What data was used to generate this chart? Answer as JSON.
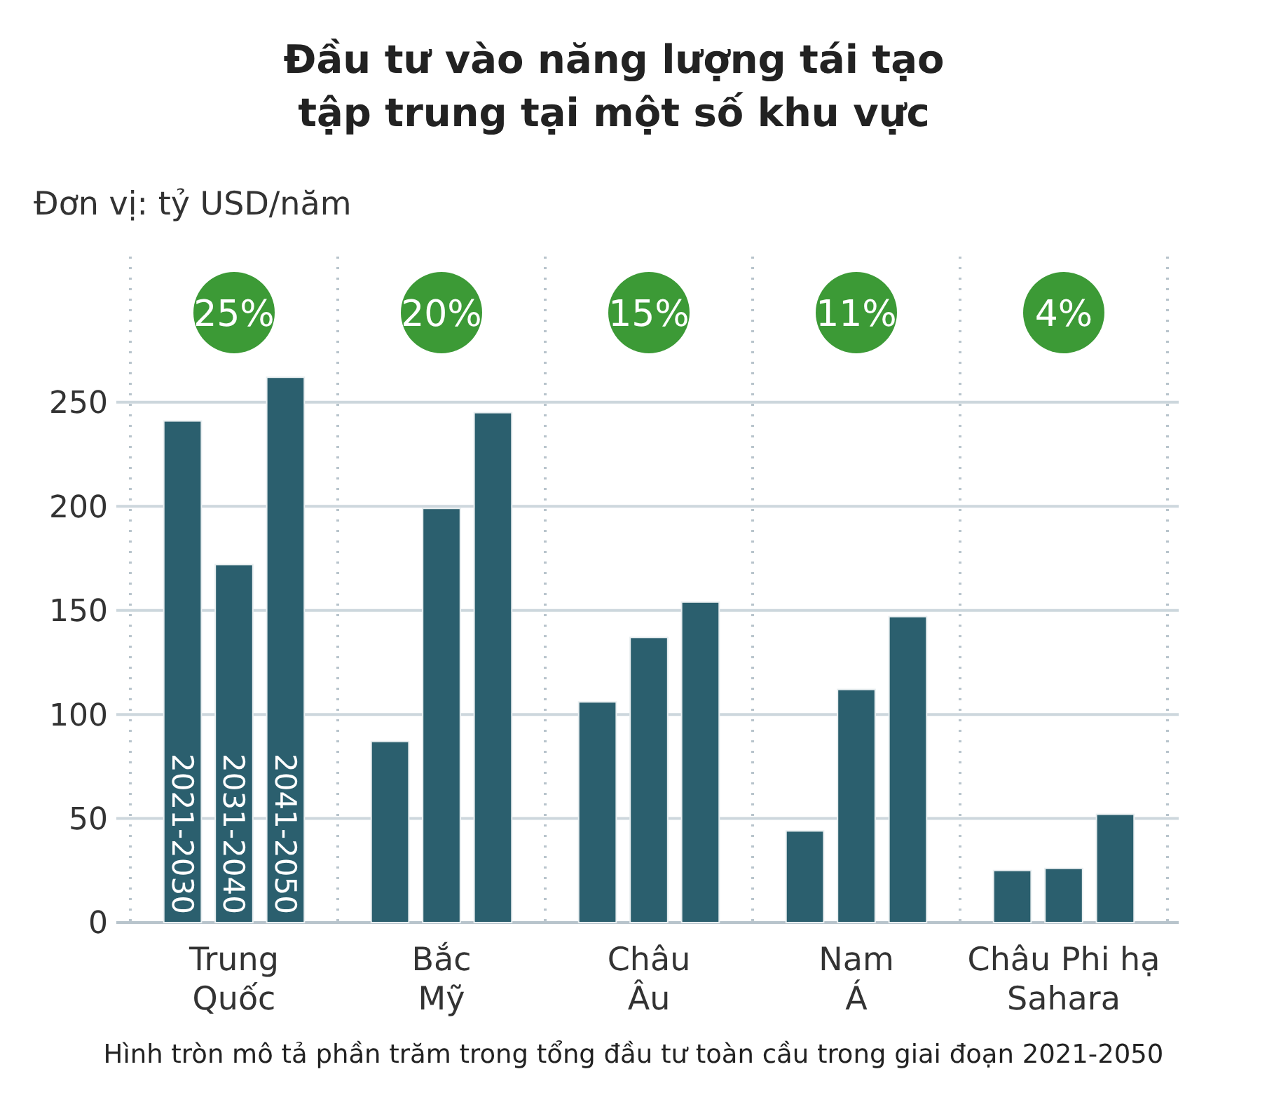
{
  "chart_data": {
    "type": "bar",
    "title": "Đầu tư vào năng lượng tái tạo\ntập trung tại một số khu vực",
    "subtitle": "Đơn vị: tỷ USD/năm",
    "categories": [
      "Trung\nQuốc",
      "Bắc\nMỹ",
      "Châu\nÂu",
      "Nam\nÁ",
      "Châu Phi hạ\nSahara"
    ],
    "series": [
      {
        "name": "2021-2030",
        "color": "#2b5f6e",
        "values": [
          241,
          87,
          106,
          44,
          25
        ]
      },
      {
        "name": "2031-2040",
        "color": "#2b5f6e",
        "values": [
          172,
          199,
          137,
          112,
          26
        ]
      },
      {
        "name": "2041-2050",
        "color": "#2b5f6e",
        "values": [
          262,
          245,
          154,
          147,
          52
        ]
      }
    ],
    "ylim": [
      0,
      320
    ],
    "yticks": [
      0,
      50,
      100,
      150,
      200,
      250
    ],
    "grid": "y",
    "annotations": [
      "25%",
      "20%",
      "15%",
      "11%",
      "4%",
      "Hình tròn mô tả phần trăm trong tổng đầu tư toàn cầu trong giai đoạn 2021-2050"
    ]
  }
}
